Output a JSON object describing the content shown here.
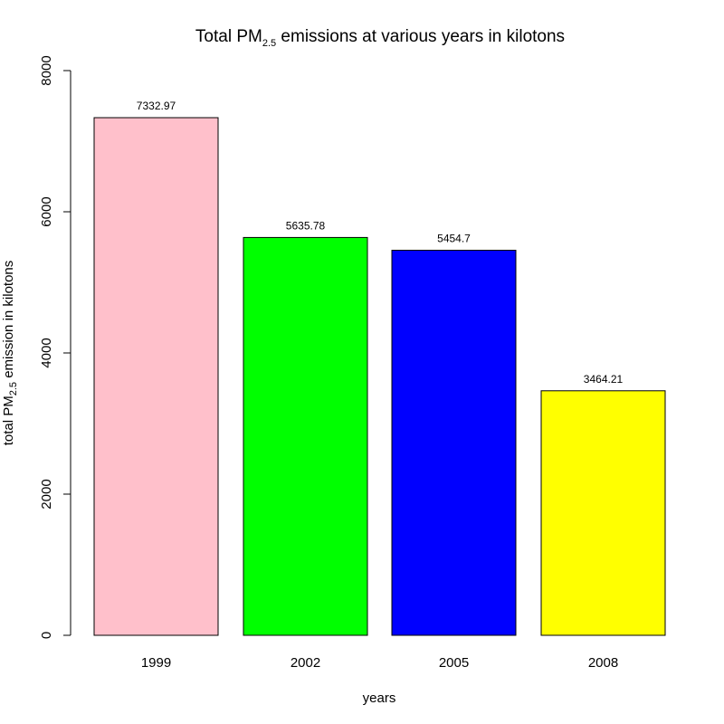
{
  "chart_data": {
    "type": "bar",
    "title": {
      "prefix": "Total PM",
      "subscript": "2.5",
      "suffix": " emissions at various years in kilotons"
    },
    "xlabel": "years",
    "ylabel": {
      "prefix": "total PM",
      "subscript": "2.5",
      "suffix": " emission in kilotons"
    },
    "categories": [
      "1999",
      "2002",
      "2005",
      "2008"
    ],
    "values": [
      7332.97,
      5635.78,
      5454.7,
      3464.21
    ],
    "value_labels": [
      "7332.97",
      "5635.78",
      "5454.7",
      "3464.21"
    ],
    "colors": [
      "#ffc0cb",
      "#00ff00",
      "#0000ff",
      "#ffff00"
    ],
    "ylim": [
      0,
      8000
    ],
    "yticks": [
      "0",
      "2000",
      "4000",
      "6000",
      "8000"
    ],
    "grid": false,
    "legend": "none"
  }
}
